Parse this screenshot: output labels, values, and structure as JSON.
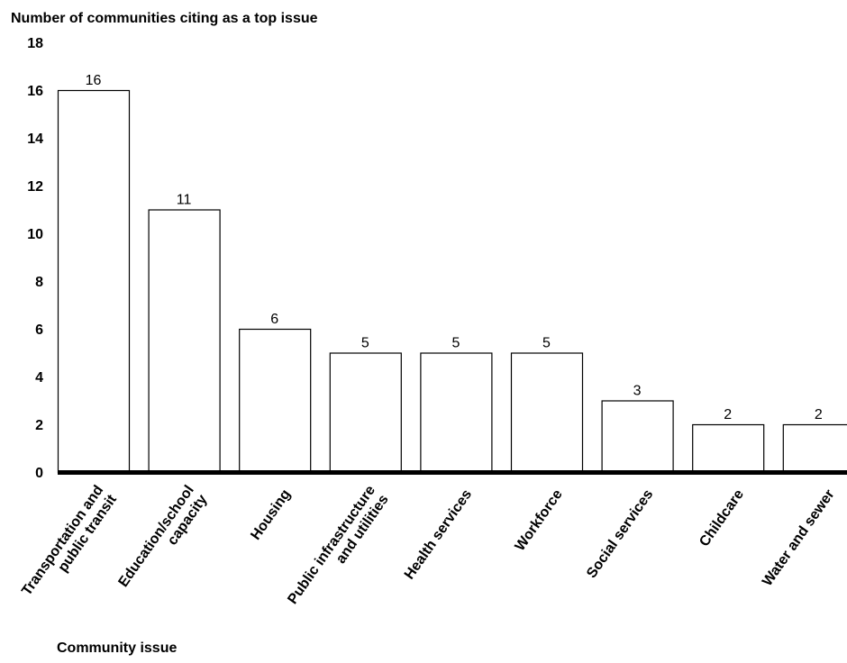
{
  "chart_data": {
    "type": "bar",
    "ylabel": "Number of communities citing as a top issue",
    "xlabel": "Community issue",
    "ylim": [
      0,
      18
    ],
    "yticks": [
      0,
      2,
      4,
      6,
      8,
      10,
      12,
      14,
      16,
      18
    ],
    "grid": false,
    "categories": [
      [
        "Transportation and",
        "public transit"
      ],
      [
        "Education/school",
        "capacity"
      ],
      [
        "Housing"
      ],
      [
        "Public infrastructure",
        "and utilities"
      ],
      [
        "Health services"
      ],
      [
        "Workforce"
      ],
      [
        "Social services"
      ],
      [
        "Childcare"
      ],
      [
        "Water and sewer"
      ]
    ],
    "values": [
      16,
      11,
      6,
      5,
      5,
      5,
      3,
      2,
      2
    ],
    "colors": {
      "bar_fill": "#ffffff",
      "bar_stroke": "#000000",
      "axis": "#000000"
    }
  }
}
